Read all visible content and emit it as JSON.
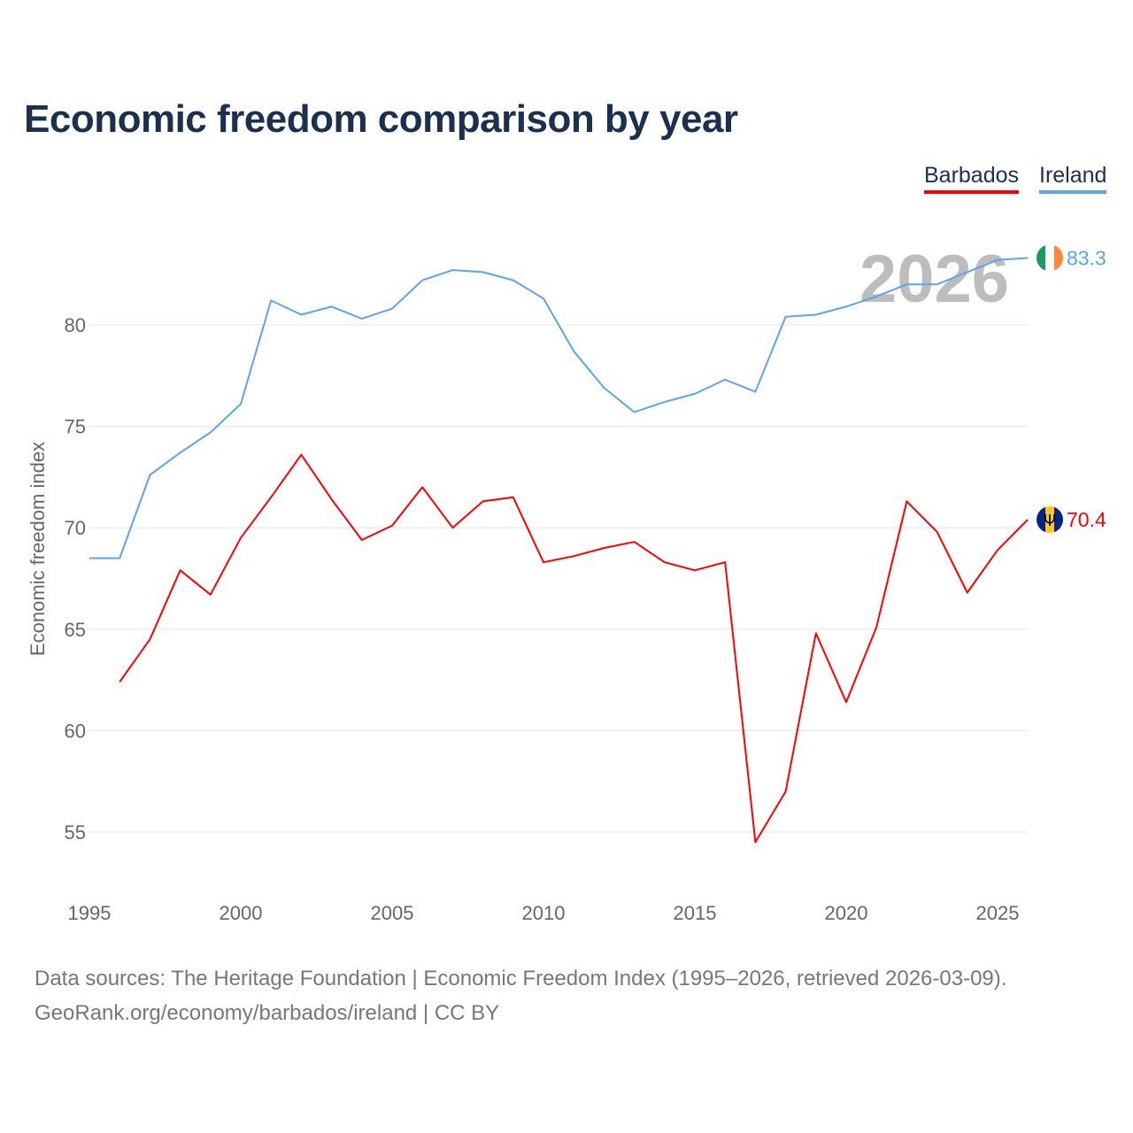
{
  "chart_data": {
    "type": "line",
    "title": "Economic freedom comparison by year",
    "xlabel": "",
    "ylabel": "Economic freedom index",
    "xlim": [
      1995,
      2026
    ],
    "ylim": [
      52.5,
      84.5
    ],
    "x_ticks": [
      1995,
      2000,
      2005,
      2010,
      2015,
      2020,
      2025
    ],
    "y_ticks": [
      55,
      60,
      65,
      70,
      75,
      80
    ],
    "grid": true,
    "legend_position": "top-right",
    "current_year_label": "2026",
    "x": [
      1995,
      1996,
      1997,
      1998,
      1999,
      2000,
      2001,
      2002,
      2003,
      2004,
      2005,
      2006,
      2007,
      2008,
      2009,
      2010,
      2011,
      2012,
      2013,
      2014,
      2015,
      2016,
      2017,
      2018,
      2019,
      2020,
      2021,
      2022,
      2023,
      2024,
      2025,
      2026
    ],
    "series": [
      {
        "name": "Barbados",
        "color": "#ff0000",
        "end_label": "70.4",
        "values": [
          null,
          62.4,
          64.5,
          67.9,
          66.7,
          69.5,
          71.5,
          73.6,
          71.4,
          69.4,
          70.1,
          72.0,
          70.0,
          71.3,
          71.5,
          68.3,
          68.6,
          69.0,
          69.3,
          68.3,
          67.9,
          68.3,
          54.5,
          57.0,
          64.8,
          61.4,
          65.1,
          71.3,
          69.8,
          66.8,
          68.9,
          70.4
        ]
      },
      {
        "name": "Ireland",
        "color": "#5ba4ee",
        "end_label": "83.3",
        "values": [
          68.5,
          68.5,
          72.6,
          73.7,
          74.7,
          76.1,
          81.2,
          80.5,
          80.9,
          80.3,
          80.8,
          82.2,
          82.7,
          82.6,
          82.2,
          81.3,
          78.7,
          76.9,
          75.7,
          76.2,
          76.6,
          77.3,
          76.7,
          80.4,
          80.5,
          80.9,
          81.4,
          82.0,
          82.0,
          82.6,
          83.2,
          83.3
        ]
      }
    ]
  },
  "footer": {
    "line1": "Data sources: The Heritage Foundation | Economic Freedom Index (1995–2026, retrieved 2026-03-09).",
    "line2": "GeoRank.org/economy/barbados/ireland | CC BY"
  }
}
